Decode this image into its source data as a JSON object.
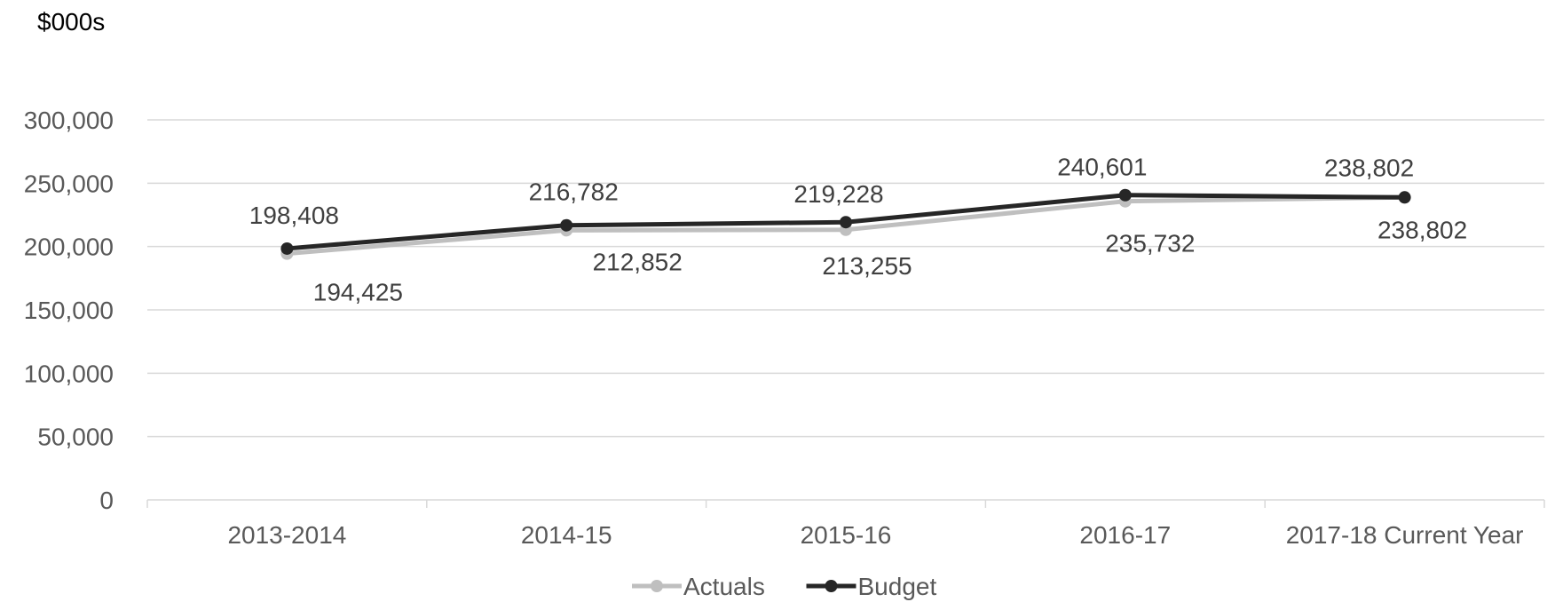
{
  "chart_data": {
    "type": "line",
    "title": "",
    "unit_label": "$000s",
    "xlabel": "",
    "ylabel": "",
    "categories": [
      "2013-2014",
      "2014-15",
      "2015-16",
      "2016-17",
      "2017-18 Current Year"
    ],
    "ylim": [
      0,
      300000
    ],
    "y_ticks": [
      {
        "value": 0,
        "label": "0"
      },
      {
        "value": 50000,
        "label": "50,000"
      },
      {
        "value": 100000,
        "label": "100,000"
      },
      {
        "value": 150000,
        "label": "150,000"
      },
      {
        "value": 200000,
        "label": "200,000"
      },
      {
        "value": 250000,
        "label": "250,000"
      },
      {
        "value": 300000,
        "label": "300,000"
      }
    ],
    "grid": true,
    "legend_position": "bottom-center",
    "series": [
      {
        "name": "Actuals",
        "color": "#BFBFBF",
        "values": [
          194425,
          212852,
          213255,
          235732,
          238802
        ],
        "labels": [
          "194,425",
          "212,852",
          "213,255",
          "235,732",
          "238,802"
        ],
        "label_position": "below"
      },
      {
        "name": "Budget",
        "color": "#262626",
        "values": [
          198408,
          216782,
          219228,
          240601,
          238802
        ],
        "labels": [
          "198,408",
          "216,782",
          "219,228",
          "240,601",
          "238,802"
        ],
        "label_position": "above"
      }
    ]
  }
}
